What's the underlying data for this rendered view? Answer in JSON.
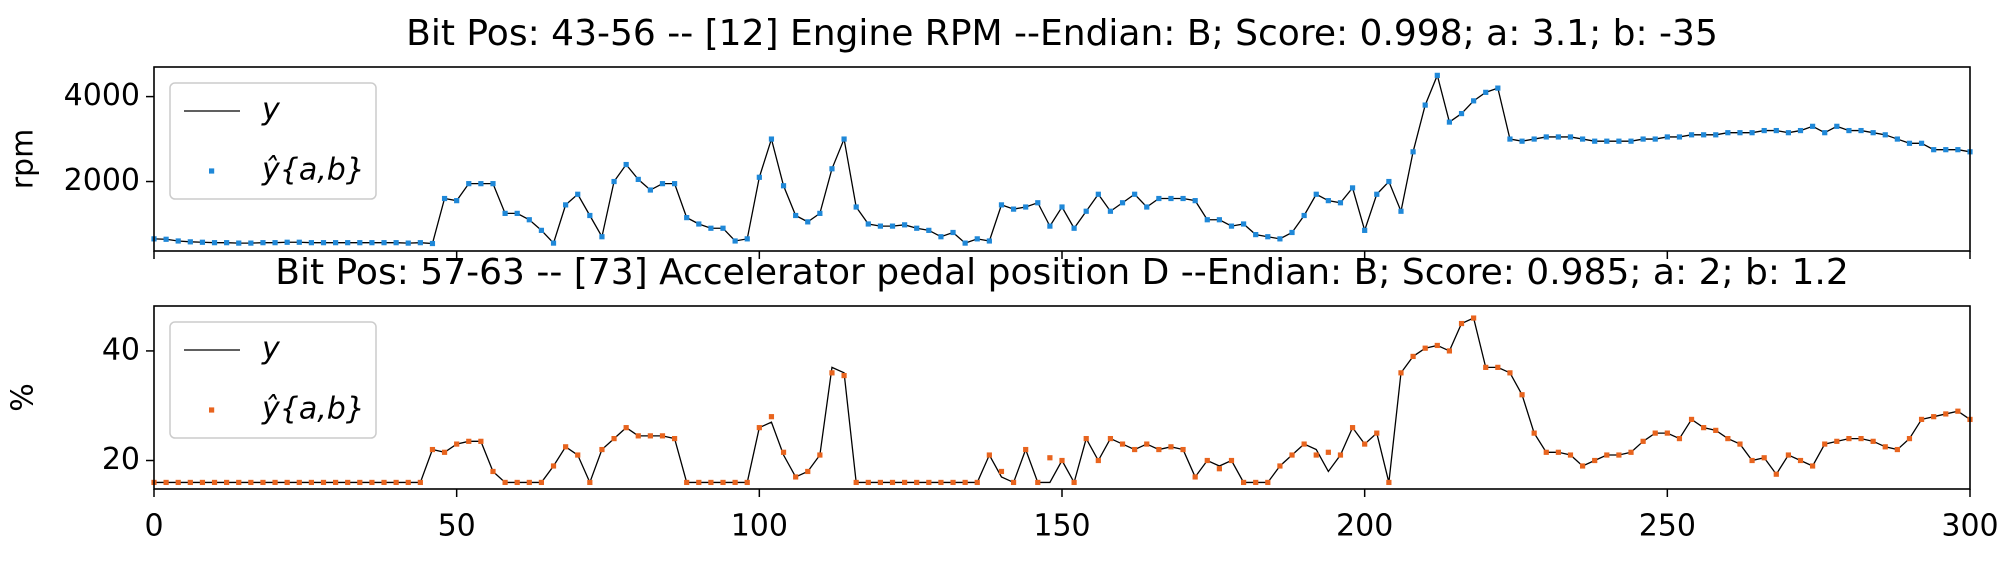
{
  "chart_data": [
    {
      "type": "line",
      "title": "Bit Pos: 43-56 --  [12] Engine RPM --Endian: B;  Score: 0.998; a: 3.1; b: -35",
      "y_label": "rpm",
      "x": [
        0,
        2,
        4,
        6,
        8,
        10,
        12,
        14,
        16,
        18,
        20,
        22,
        24,
        26,
        28,
        30,
        32,
        34,
        36,
        38,
        40,
        42,
        44,
        46,
        48,
        50,
        52,
        54,
        56,
        58,
        60,
        62,
        64,
        66,
        68,
        70,
        72,
        74,
        76,
        78,
        80,
        82,
        84,
        86,
        88,
        90,
        92,
        94,
        96,
        98,
        100,
        102,
        104,
        106,
        108,
        110,
        112,
        114,
        116,
        118,
        120,
        122,
        124,
        126,
        128,
        130,
        132,
        134,
        136,
        138,
        140,
        142,
        144,
        146,
        148,
        150,
        152,
        154,
        156,
        158,
        160,
        162,
        164,
        166,
        168,
        170,
        172,
        174,
        176,
        178,
        180,
        182,
        184,
        186,
        188,
        190,
        192,
        194,
        196,
        198,
        200,
        202,
        204,
        206,
        208,
        210,
        212,
        214,
        216,
        218,
        220,
        222,
        224,
        226,
        228,
        230,
        232,
        234,
        236,
        238,
        240,
        242,
        244,
        246,
        248,
        250,
        252,
        254,
        256,
        258,
        260,
        262,
        264,
        266,
        268,
        270,
        272,
        274,
        276,
        278,
        280,
        282,
        284,
        286,
        288,
        290,
        292,
        294,
        296,
        298,
        300
      ],
      "series": [
        {
          "name": "y",
          "color": "#000000",
          "mode": "line",
          "values": [
            650,
            640,
            600,
            580,
            570,
            560,
            560,
            550,
            550,
            560,
            560,
            570,
            570,
            560,
            560,
            560,
            560,
            560,
            560,
            560,
            560,
            550,
            560,
            540,
            1600,
            1550,
            1950,
            1950,
            1950,
            1250,
            1250,
            1100,
            850,
            550,
            1450,
            1700,
            1200,
            700,
            2000,
            2400,
            2050,
            1800,
            1950,
            1950,
            1150,
            1000,
            900,
            900,
            600,
            650,
            2100,
            3000,
            1900,
            1200,
            1050,
            1250,
            2300,
            3000,
            1400,
            1000,
            950,
            950,
            980,
            900,
            850,
            700,
            800,
            550,
            650,
            600,
            1450,
            1350,
            1400,
            1500,
            950,
            1400,
            900,
            1300,
            1700,
            1300,
            1500,
            1700,
            1400,
            1600,
            1600,
            1600,
            1550,
            1100,
            1100,
            950,
            1000,
            750,
            700,
            650,
            800,
            1200,
            1700,
            1550,
            1500,
            1850,
            850,
            1700,
            2000,
            1300,
            2700,
            3800,
            4500,
            3400,
            3600,
            3900,
            4100,
            4200,
            3000,
            2950,
            3000,
            3050,
            3050,
            3050,
            3000,
            2950,
            2950,
            2950,
            2950,
            3000,
            3000,
            3050,
            3050,
            3100,
            3100,
            3100,
            3150,
            3150,
            3150,
            3200,
            3200,
            3150,
            3200,
            3300,
            3150,
            3300,
            3200,
            3200,
            3150,
            3100,
            3000,
            2900,
            2900,
            2750,
            2750,
            2750,
            2700
          ]
        },
        {
          "name": "ŷ{a,b}",
          "color": "#1f88d8",
          "mode": "markers",
          "values": [
            650,
            640,
            600,
            580,
            570,
            560,
            560,
            550,
            550,
            560,
            560,
            570,
            570,
            560,
            560,
            560,
            560,
            560,
            560,
            560,
            560,
            550,
            560,
            540,
            1600,
            1550,
            1950,
            1950,
            1950,
            1250,
            1250,
            1100,
            850,
            550,
            1450,
            1700,
            1200,
            700,
            2000,
            2400,
            2050,
            1800,
            1950,
            1950,
            1150,
            1000,
            900,
            900,
            600,
            650,
            2100,
            3000,
            1900,
            1200,
            1050,
            1250,
            2300,
            3000,
            1400,
            1000,
            950,
            950,
            980,
            900,
            850,
            700,
            800,
            550,
            650,
            600,
            1450,
            1350,
            1400,
            1500,
            950,
            1400,
            900,
            1300,
            1700,
            1300,
            1500,
            1700,
            1400,
            1600,
            1600,
            1600,
            1550,
            1100,
            1100,
            950,
            1000,
            750,
            700,
            650,
            800,
            1200,
            1700,
            1550,
            1500,
            1850,
            850,
            1700,
            2000,
            1300,
            2700,
            3800,
            4500,
            3400,
            3600,
            3900,
            4100,
            4200,
            3000,
            2950,
            3000,
            3050,
            3050,
            3050,
            3000,
            2950,
            2950,
            2950,
            2950,
            3000,
            3000,
            3050,
            3050,
            3100,
            3100,
            3100,
            3150,
            3150,
            3150,
            3200,
            3200,
            3150,
            3200,
            3300,
            3150,
            3300,
            3200,
            3200,
            3150,
            3100,
            3000,
            2900,
            2900,
            2750,
            2750,
            2750,
            2700
          ]
        }
      ],
      "xlim": [
        0,
        300
      ],
      "xticks": [
        0,
        50,
        100,
        150,
        200,
        250,
        300
      ],
      "ylim": [
        364,
        4697
      ],
      "yticks": [
        2000,
        4000
      ],
      "legend": "upper left"
    },
    {
      "type": "line",
      "title": "Bit Pos: 57-63 --  [73] Accelerator pedal position D --Endian: B;  Score: 0.985; a: 2; b: 1.2",
      "y_label": "%",
      "x": [
        0,
        2,
        4,
        6,
        8,
        10,
        12,
        14,
        16,
        18,
        20,
        22,
        24,
        26,
        28,
        30,
        32,
        34,
        36,
        38,
        40,
        42,
        44,
        46,
        48,
        50,
        52,
        54,
        56,
        58,
        60,
        62,
        64,
        66,
        68,
        70,
        72,
        74,
        76,
        78,
        80,
        82,
        84,
        86,
        88,
        90,
        92,
        94,
        96,
        98,
        100,
        102,
        104,
        106,
        108,
        110,
        112,
        114,
        116,
        118,
        120,
        122,
        124,
        126,
        128,
        130,
        132,
        134,
        136,
        138,
        140,
        142,
        144,
        146,
        148,
        150,
        152,
        154,
        156,
        158,
        160,
        162,
        164,
        166,
        168,
        170,
        172,
        174,
        176,
        178,
        180,
        182,
        184,
        186,
        188,
        190,
        192,
        194,
        196,
        198,
        200,
        202,
        204,
        206,
        208,
        210,
        212,
        214,
        216,
        218,
        220,
        222,
        224,
        226,
        228,
        230,
        232,
        234,
        236,
        238,
        240,
        242,
        244,
        246,
        248,
        250,
        252,
        254,
        256,
        258,
        260,
        262,
        264,
        266,
        268,
        270,
        272,
        274,
        276,
        278,
        280,
        282,
        284,
        286,
        288,
        290,
        292,
        294,
        296,
        298,
        300
      ],
      "series": [
        {
          "name": "y",
          "color": "#000000",
          "mode": "line",
          "values": [
            16,
            16,
            16,
            16,
            16,
            16,
            16,
            16,
            16,
            16,
            16,
            16,
            16,
            16,
            16,
            16,
            16,
            16,
            16,
            16,
            16,
            16,
            16,
            22,
            21.5,
            23,
            23.5,
            23.5,
            18,
            16,
            16,
            16,
            16,
            19,
            22.5,
            21,
            16,
            22,
            24,
            26,
            24.5,
            24.5,
            24.5,
            24,
            16,
            16,
            16,
            16,
            16,
            16,
            26,
            27,
            21,
            17,
            18,
            21,
            37,
            36,
            16,
            16,
            16,
            16,
            16,
            16,
            16,
            16,
            16,
            16,
            16,
            21,
            17,
            16,
            22,
            16,
            16,
            20,
            16,
            24,
            20,
            24,
            23,
            22,
            23,
            22,
            22.5,
            22,
            17,
            20,
            19,
            20,
            16,
            16,
            16,
            19,
            21,
            23,
            22,
            18,
            21,
            26,
            23,
            25,
            16,
            36,
            39,
            40.5,
            41,
            40,
            45,
            46,
            37,
            37,
            36,
            32,
            25,
            21.5,
            21.5,
            21,
            19,
            20,
            21,
            21,
            21.5,
            23.5,
            25,
            25,
            24,
            27.5,
            26,
            25.5,
            24,
            23,
            20,
            20.5,
            17.5,
            21,
            20,
            19,
            23,
            23.5,
            24,
            24,
            23.5,
            22.5,
            22,
            24,
            27.5,
            28,
            28.5,
            29,
            27.5
          ]
        },
        {
          "name": "ŷ{a,b}",
          "color": "#e8641e",
          "mode": "markers",
          "values": [
            16,
            16,
            16,
            16,
            16,
            16,
            16,
            16,
            16,
            16,
            16,
            16,
            16,
            16,
            16,
            16,
            16,
            16,
            16,
            16,
            16,
            16,
            16,
            22,
            21.5,
            23,
            23.5,
            23.5,
            18,
            16,
            16,
            16,
            16,
            19,
            22.5,
            21,
            16,
            22,
            24,
            26,
            24.5,
            24.5,
            24.5,
            24,
            16,
            16,
            16,
            16,
            16,
            16,
            26,
            28,
            21.5,
            17,
            18,
            21,
            36,
            35.5,
            16,
            16,
            16,
            16,
            16,
            16,
            16,
            16,
            16,
            16,
            16,
            21,
            18,
            16,
            22,
            16,
            20.5,
            20,
            16,
            24,
            20,
            24,
            23,
            22,
            23,
            22,
            22.5,
            22,
            17,
            20,
            18.5,
            20,
            16,
            16,
            16,
            19,
            21,
            23,
            21,
            21.5,
            21,
            26,
            23,
            25,
            16,
            36,
            39,
            40.5,
            41,
            40,
            45,
            46,
            37,
            37,
            36,
            32,
            25,
            21.5,
            21.5,
            21,
            19,
            20,
            21,
            21,
            21.5,
            23.5,
            25,
            25,
            24,
            27.5,
            26,
            25.5,
            24,
            23,
            20,
            20.5,
            17.5,
            21,
            20,
            19,
            23,
            23.5,
            24,
            24,
            23.5,
            22.5,
            22,
            24,
            27.5,
            28,
            28.5,
            29,
            27.5
          ]
        }
      ],
      "xlim": [
        0,
        300
      ],
      "xticks": [
        0,
        50,
        100,
        150,
        200,
        250,
        300
      ],
      "ylim": [
        14.8,
        48.2
      ],
      "yticks": [
        20,
        40
      ],
      "legend": "upper left"
    }
  ]
}
